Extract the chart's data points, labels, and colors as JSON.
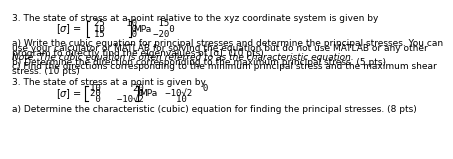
{
  "title1": "3. The state of stress at a point relative to the xyz coordinate system is given by",
  "part_a": "a) Write the cubic equation for principal stresses and determine the principal stresses. You can",
  "part_a2": "use your calculator or MATLAB for solving the equation but do not use MATLAB or any other",
  "part_a3": "program to directly find the eigenvalues of [σ]. (10 pts)",
  "note": "Note: The cubic equation is often referred to as the characteristic equation.",
  "part_b": "b) Determine the direction corresponding to the maximum principal stress. (5 pts)",
  "part_c": "c) Find the directions corresponding to the minimum principal stress and the maximum shear",
  "part_c2": "stress. (10 pts)",
  "title2": "3. The state of stress at a point is given by",
  "part2_a": "a) Determine the characteristic (cubic) equation for finding the principal stresses. (8 pts)",
  "matrix1_rows": [
    "25    10    15",
    "10     0      0",
    "15     0   −20"
  ],
  "matrix2_rows": [
    "10      20           0",
    "20       0    −10√2",
    " 0   −10√2      10"
  ],
  "bg_color": "#ffffff",
  "text_color": "#000000",
  "font_size": 6.5
}
